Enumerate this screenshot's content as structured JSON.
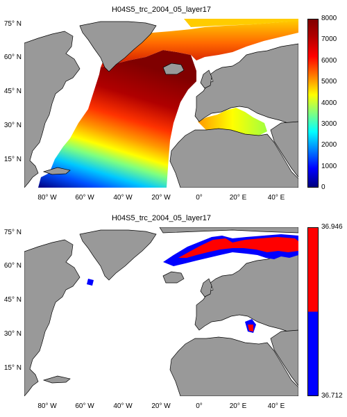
{
  "top": {
    "title": "H04S5_trc_2004_05_layer17",
    "colorbar_ticks": [
      "8000",
      "7000",
      "6000",
      "5000",
      "4000",
      "3000",
      "2000",
      "1000",
      "0"
    ]
  },
  "bottom": {
    "title": "H04S5_trc_2004_05_layer17",
    "colorbar_max": "36.946",
    "colorbar_min": "36.712",
    "colors": {
      "high": "#ff0000",
      "low": "#0000ff"
    }
  },
  "y_ticks": [
    "75° N",
    "60° N",
    "45° N",
    "30° N",
    "15° N"
  ],
  "x_ticks": [
    "80° W",
    "60° W",
    "40° W",
    "20° W",
    "0°",
    "20° E",
    "40° E"
  ],
  "colors": {
    "land": "#999999",
    "nodata": "#ffffff",
    "coast": "#000000"
  }
}
